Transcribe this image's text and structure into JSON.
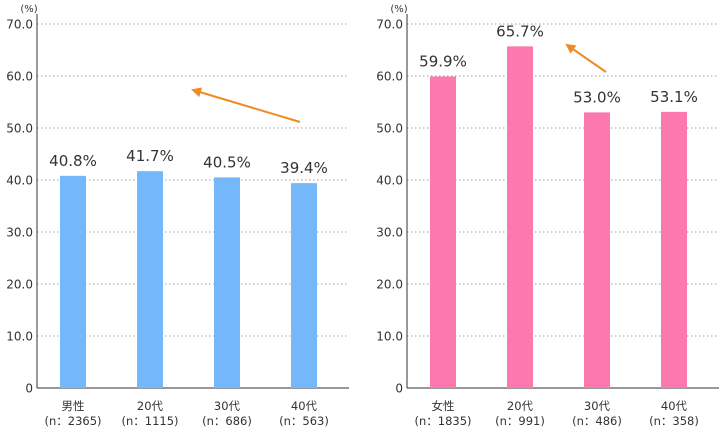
{
  "colors": {
    "axis": "#333333",
    "grid": "#9e9e9e",
    "arrow": "#f08a24",
    "text": "#333333"
  },
  "chart_data": [
    {
      "type": "bar",
      "ylabel": "(%)",
      "ylim": [
        0,
        70
      ],
      "yticks": [
        "0",
        "10.0",
        "20.0",
        "30.0",
        "40.0",
        "50.0",
        "60.0",
        "70.0"
      ],
      "grid": true,
      "color": "#74b8fb",
      "categories": [
        {
          "name": "男性",
          "n": "(n：2365)"
        },
        {
          "name": "20代",
          "n": "(n：1115)"
        },
        {
          "name": "30代",
          "n": "(n：686)"
        },
        {
          "name": "40代",
          "n": "(n：563)"
        }
      ],
      "values": [
        40.8,
        41.7,
        40.5,
        39.4
      ],
      "value_labels": [
        "40.8%",
        "41.7%",
        "40.5%",
        "39.4%"
      ],
      "annotations": [
        {
          "type": "arrow",
          "from": "40代",
          "to": "20代",
          "direction": "up-left"
        }
      ]
    },
    {
      "type": "bar",
      "ylabel": "(%)",
      "ylim": [
        0,
        70
      ],
      "yticks": [
        "0",
        "10.0",
        "20.0",
        "30.0",
        "40.0",
        "50.0",
        "60.0",
        "70.0"
      ],
      "grid": true,
      "color": "#fb79ae",
      "categories": [
        {
          "name": "女性",
          "n": "(n：1835)"
        },
        {
          "name": "20代",
          "n": "(n：991)"
        },
        {
          "name": "30代",
          "n": "(n：486)"
        },
        {
          "name": "40代",
          "n": "(n：358)"
        }
      ],
      "values": [
        59.9,
        65.7,
        53.0,
        53.1
      ],
      "value_labels": [
        "59.9%",
        "65.7%",
        "53.0%",
        "53.1%"
      ],
      "annotations": [
        {
          "type": "arrow",
          "from": "30代",
          "to": "20代",
          "direction": "up-left"
        }
      ]
    }
  ]
}
